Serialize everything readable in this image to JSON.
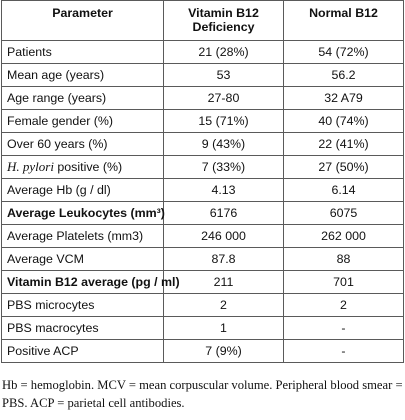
{
  "table": {
    "headers": [
      "Parameter",
      "Vitamin B12 Deficiency",
      "Normal B12"
    ],
    "rows": [
      {
        "parameter": "Patients",
        "b12_deficiency": "21 (28%)",
        "normal_b12": "54 (72%)"
      },
      {
        "parameter": "Mean age (years)",
        "b12_deficiency": "53",
        "normal_b12": "56.2"
      },
      {
        "parameter": "Age range (years)",
        "b12_deficiency": "27-80",
        "normal_b12": "32 A79"
      },
      {
        "parameter": "Female gender (%)",
        "b12_deficiency": "15 (71%)",
        "normal_b12": "40 (74%)"
      },
      {
        "parameter": "Over 60 years (%)",
        "b12_deficiency": "9 (43%)",
        "normal_b12": "22 (41%)"
      },
      {
        "parameter_italic": "H. pylori",
        "parameter_rest": " positive (%)",
        "b12_deficiency": "7 (33%)",
        "normal_b12": "27 (50%)"
      },
      {
        "parameter": "Average Hb (g / dl)",
        "b12_deficiency": "4.13",
        "normal_b12": "6.14"
      },
      {
        "parameter": "Average Leukocytes (mm³)",
        "b12_deficiency": "6176",
        "normal_b12": "6075"
      },
      {
        "parameter": "Average Platelets (mm3)",
        "b12_deficiency": "246 000",
        "normal_b12": "262 000"
      },
      {
        "parameter": "Average VCM",
        "b12_deficiency": "87.8",
        "normal_b12": "88"
      },
      {
        "parameter": "Vitamin B12 average (pg / ml)",
        "b12_deficiency": "211",
        "normal_b12": "701"
      },
      {
        "parameter": "PBS microcytes",
        "b12_deficiency": "2",
        "normal_b12": "2"
      },
      {
        "parameter": "PBS macrocytes",
        "b12_deficiency": "1",
        "normal_b12": "-"
      },
      {
        "parameter": "Positive ACP",
        "b12_deficiency": "7 (9%)",
        "normal_b12": "-"
      }
    ]
  },
  "footnote": "Hb = hemoglobin. MCV = mean corpuscular volume. Peripheral blood smear = PBS. ACP = parietal cell antibodies."
}
